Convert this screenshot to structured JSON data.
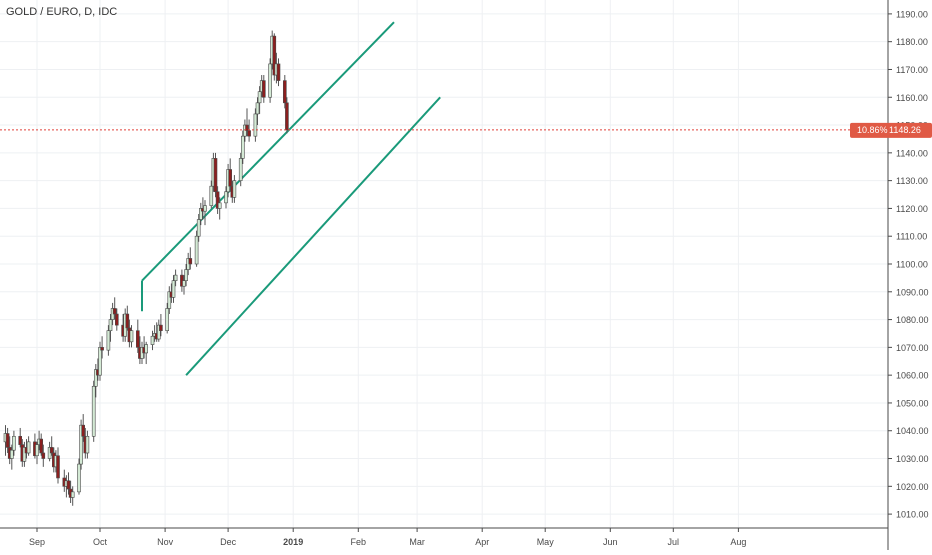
{
  "header": {
    "title": "GOLD / EURO, D, IDC"
  },
  "price_badge": {
    "change": "10.86%",
    "price": "1148.26"
  },
  "colors": {
    "up_fill": "#d4ead5",
    "up_stroke": "#4a4a4a",
    "down_fill": "#8b1f1f",
    "down_stroke": "#4a4a4a",
    "channel": "#1a9a7a",
    "price_line": "#e0403a",
    "badge_bg": "#e05a45",
    "grid": "#eef0f3",
    "axis_text": "#4a4a4a"
  },
  "chart_data": {
    "type": "candlestick",
    "title": "GOLD / EURO, D, IDC",
    "ylim": [
      1005,
      1195
    ],
    "y_ticks": [
      1010,
      1020,
      1030,
      1040,
      1050,
      1060,
      1070,
      1080,
      1090,
      1100,
      1110,
      1120,
      1130,
      1140,
      1150,
      1160,
      1170,
      1180,
      1190
    ],
    "x_ticks": [
      {
        "day": 0,
        "label": "Sep",
        "bold": false
      },
      {
        "day": 30,
        "label": "Oct",
        "bold": false
      },
      {
        "day": 61,
        "label": "Nov",
        "bold": false
      },
      {
        "day": 91,
        "label": "Dec",
        "bold": false
      },
      {
        "day": 122,
        "label": "2019",
        "bold": true
      },
      {
        "day": 153,
        "label": "Feb",
        "bold": false
      },
      {
        "day": 181,
        "label": "Mar",
        "bold": false
      },
      {
        "day": 212,
        "label": "Apr",
        "bold": false
      },
      {
        "day": 242,
        "label": "May",
        "bold": false
      },
      {
        "day": 273,
        "label": "Jun",
        "bold": false
      },
      {
        "day": 303,
        "label": "Jul",
        "bold": false
      },
      {
        "day": 334,
        "label": "Aug",
        "bold": false
      }
    ],
    "last_price": 1148.26,
    "channel": {
      "upper": [
        [
          50,
          1094
        ],
        [
          50,
          1094
        ],
        [
          170,
          1187
        ]
      ],
      "lower": [
        [
          71,
          1060
        ],
        [
          71,
          1060
        ],
        [
          192,
          1160
        ]
      ],
      "left_edge": [
        [
          50,
          1094
        ],
        [
          50,
          1094
        ]
      ]
    },
    "candles": [
      [
        -15,
        1036,
        1042,
        1031,
        1039
      ],
      [
        -14,
        1039,
        1041,
        1032,
        1034
      ],
      [
        -13,
        1034,
        1038,
        1028,
        1030
      ],
      [
        -12,
        1030,
        1035,
        1026,
        1033
      ],
      [
        -11,
        1033,
        1040,
        1031,
        1038
      ],
      [
        -8,
        1038,
        1041,
        1034,
        1035
      ],
      [
        -7,
        1035,
        1037,
        1027,
        1029
      ],
      [
        -6,
        1029,
        1036,
        1027,
        1034
      ],
      [
        -5,
        1034,
        1037,
        1030,
        1032
      ],
      [
        -4,
        1032,
        1038,
        1031,
        1036
      ],
      [
        -1,
        1036,
        1039,
        1030,
        1031
      ],
      [
        0,
        1031,
        1036,
        1028,
        1035
      ],
      [
        1,
        1035,
        1040,
        1033,
        1037
      ],
      [
        2,
        1037,
        1039,
        1031,
        1032
      ],
      [
        3,
        1032,
        1035,
        1027,
        1030
      ],
      [
        6,
        1030,
        1036,
        1029,
        1034
      ],
      [
        7,
        1034,
        1038,
        1031,
        1032
      ],
      [
        8,
        1032,
        1034,
        1025,
        1027
      ],
      [
        9,
        1027,
        1033,
        1025,
        1031
      ],
      [
        10,
        1031,
        1034,
        1021,
        1023
      ],
      [
        13,
        1023,
        1026,
        1018,
        1020
      ],
      [
        14,
        1020,
        1024,
        1016,
        1022
      ],
      [
        15,
        1022,
        1025,
        1017,
        1019
      ],
      [
        16,
        1019,
        1022,
        1014,
        1016
      ],
      [
        17,
        1016,
        1020,
        1013,
        1018
      ],
      [
        20,
        1018,
        1030,
        1017,
        1028
      ],
      [
        21,
        1028,
        1044,
        1026,
        1042
      ],
      [
        22,
        1042,
        1046,
        1036,
        1038
      ],
      [
        23,
        1038,
        1041,
        1030,
        1032
      ],
      [
        24,
        1032,
        1040,
        1030,
        1038
      ],
      [
        27,
        1038,
        1058,
        1036,
        1056
      ],
      [
        28,
        1056,
        1064,
        1052,
        1062
      ],
      [
        29,
        1062,
        1066,
        1058,
        1060
      ],
      [
        30,
        1060,
        1072,
        1058,
        1070
      ],
      [
        31,
        1070,
        1074,
        1066,
        1069
      ],
      [
        34,
        1069,
        1078,
        1067,
        1076
      ],
      [
        35,
        1076,
        1082,
        1072,
        1080
      ],
      [
        36,
        1080,
        1086,
        1078,
        1084
      ],
      [
        37,
        1084,
        1088,
        1080,
        1082
      ],
      [
        38,
        1082,
        1084,
        1076,
        1078
      ],
      [
        41,
        1078,
        1082,
        1072,
        1074
      ],
      [
        42,
        1074,
        1084,
        1072,
        1082
      ],
      [
        43,
        1082,
        1085,
        1076,
        1077
      ],
      [
        44,
        1077,
        1080,
        1070,
        1072
      ],
      [
        45,
        1072,
        1078,
        1070,
        1076
      ],
      [
        48,
        1076,
        1080,
        1068,
        1070
      ],
      [
        49,
        1070,
        1074,
        1064,
        1066
      ],
      [
        50,
        1066,
        1072,
        1064,
        1070
      ],
      [
        51,
        1070,
        1074,
        1066,
        1068
      ],
      [
        52,
        1068,
        1072,
        1064,
        1071
      ],
      [
        55,
        1071,
        1076,
        1069,
        1074
      ],
      [
        56,
        1074,
        1078,
        1072,
        1075
      ],
      [
        57,
        1075,
        1079,
        1072,
        1073
      ],
      [
        58,
        1073,
        1080,
        1072,
        1078
      ],
      [
        59,
        1078,
        1082,
        1074,
        1076
      ],
      [
        62,
        1076,
        1086,
        1075,
        1084
      ],
      [
        63,
        1084,
        1092,
        1082,
        1090
      ],
      [
        64,
        1090,
        1093,
        1086,
        1088
      ],
      [
        65,
        1088,
        1096,
        1086,
        1094
      ],
      [
        66,
        1094,
        1098,
        1092,
        1096
      ],
      [
        69,
        1096,
        1098,
        1090,
        1092
      ],
      [
        70,
        1092,
        1096,
        1089,
        1094
      ],
      [
        71,
        1094,
        1100,
        1092,
        1098
      ],
      [
        72,
        1098,
        1104,
        1096,
        1102
      ],
      [
        73,
        1102,
        1106,
        1098,
        1100
      ],
      [
        76,
        1100,
        1112,
        1099,
        1110
      ],
      [
        77,
        1110,
        1118,
        1108,
        1116
      ],
      [
        78,
        1116,
        1122,
        1114,
        1120
      ],
      [
        79,
        1120,
        1124,
        1116,
        1119
      ],
      [
        80,
        1119,
        1123,
        1114,
        1121
      ],
      [
        83,
        1121,
        1130,
        1120,
        1128
      ],
      [
        84,
        1128,
        1140,
        1126,
        1138
      ],
      [
        85,
        1138,
        1140,
        1124,
        1126
      ],
      [
        86,
        1126,
        1128,
        1118,
        1120
      ],
      [
        87,
        1120,
        1124,
        1116,
        1122
      ],
      [
        90,
        1122,
        1128,
        1120,
        1126
      ],
      [
        91,
        1126,
        1136,
        1124,
        1134
      ],
      [
        92,
        1134,
        1138,
        1126,
        1128
      ],
      [
        93,
        1128,
        1130,
        1122,
        1124
      ],
      [
        94,
        1124,
        1132,
        1122,
        1130
      ],
      [
        97,
        1130,
        1140,
        1128,
        1138
      ],
      [
        98,
        1138,
        1148,
        1136,
        1146
      ],
      [
        99,
        1146,
        1152,
        1144,
        1150
      ],
      [
        100,
        1150,
        1156,
        1146,
        1148
      ],
      [
        101,
        1148,
        1152,
        1144,
        1146
      ],
      [
        104,
        1146,
        1156,
        1144,
        1154
      ],
      [
        105,
        1154,
        1160,
        1150,
        1158
      ],
      [
        106,
        1158,
        1164,
        1154,
        1162
      ],
      [
        107,
        1162,
        1168,
        1160,
        1166
      ],
      [
        108,
        1166,
        1168,
        1158,
        1160
      ],
      [
        111,
        1160,
        1174,
        1158,
        1172
      ],
      [
        112,
        1172,
        1184,
        1170,
        1182
      ],
      [
        113,
        1182,
        1183,
        1166,
        1168
      ],
      [
        114,
        1168,
        1176,
        1165,
        1172
      ],
      [
        115,
        1172,
        1174,
        1164,
        1166
      ],
      [
        118,
        1166,
        1168,
        1156,
        1158
      ],
      [
        119,
        1158,
        1160,
        1147,
        1148.26
      ]
    ]
  }
}
